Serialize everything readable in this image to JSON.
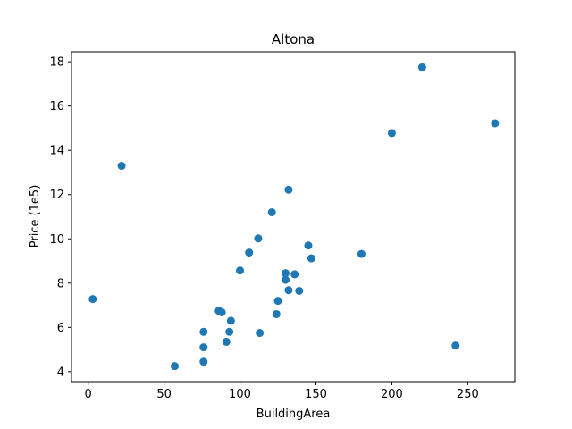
{
  "chart_data": {
    "type": "scatter",
    "title": "Altona",
    "xlabel": "BuildingArea",
    "ylabel": "Price (1e5)",
    "xlim": [
      -11,
      281
    ],
    "ylim": [
      3.55,
      18.45
    ],
    "xticks": [
      0,
      50,
      100,
      150,
      200,
      250
    ],
    "yticks": [
      4,
      6,
      8,
      10,
      12,
      14,
      16,
      18
    ],
    "grid": false,
    "color": "#1f77b4",
    "points": [
      {
        "x": 3,
        "y": 7.28
      },
      {
        "x": 22,
        "y": 13.3
      },
      {
        "x": 57,
        "y": 4.25
      },
      {
        "x": 76,
        "y": 5.8
      },
      {
        "x": 76,
        "y": 5.1
      },
      {
        "x": 76,
        "y": 4.45
      },
      {
        "x": 86,
        "y": 6.75
      },
      {
        "x": 88,
        "y": 6.68
      },
      {
        "x": 91,
        "y": 5.35
      },
      {
        "x": 93,
        "y": 5.8
      },
      {
        "x": 94,
        "y": 6.3
      },
      {
        "x": 100,
        "y": 8.57
      },
      {
        "x": 106,
        "y": 9.38
      },
      {
        "x": 112,
        "y": 10.02
      },
      {
        "x": 113,
        "y": 5.75
      },
      {
        "x": 121,
        "y": 11.2
      },
      {
        "x": 124,
        "y": 6.6
      },
      {
        "x": 125,
        "y": 7.2
      },
      {
        "x": 130,
        "y": 8.45
      },
      {
        "x": 130,
        "y": 8.15
      },
      {
        "x": 132,
        "y": 7.68
      },
      {
        "x": 132,
        "y": 12.22
      },
      {
        "x": 136,
        "y": 8.4
      },
      {
        "x": 139,
        "y": 7.65
      },
      {
        "x": 145,
        "y": 9.7
      },
      {
        "x": 147,
        "y": 9.12
      },
      {
        "x": 180,
        "y": 9.32
      },
      {
        "x": 200,
        "y": 14.78
      },
      {
        "x": 220,
        "y": 17.75
      },
      {
        "x": 242,
        "y": 5.18
      },
      {
        "x": 268,
        "y": 15.22
      }
    ]
  }
}
